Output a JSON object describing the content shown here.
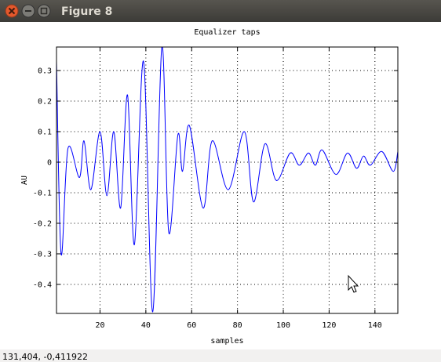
{
  "window": {
    "title": "Figure 8",
    "status": "131,404, -0,411922"
  },
  "chart_data": {
    "type": "line",
    "title": "Equalizer taps",
    "x_label": "samples",
    "y_label": "AU",
    "x": [
      1,
      3,
      6,
      11,
      13,
      16,
      20,
      23,
      26,
      29,
      32,
      35,
      39,
      43,
      47,
      50,
      54,
      56,
      59,
      65,
      69,
      76,
      83,
      87,
      92,
      97,
      103,
      107,
      111,
      114,
      117,
      123,
      128,
      132,
      135,
      138,
      143,
      148,
      150
    ],
    "series": [
      {
        "color": "#0000ff",
        "values": [
          0.33,
          -0.3,
          0.045,
          -0.05,
          0.07,
          -0.09,
          0.1,
          -0.11,
          0.1,
          -0.15,
          0.22,
          -0.27,
          0.33,
          -0.49,
          0.38,
          -0.23,
          0.09,
          -0.03,
          0.12,
          -0.15,
          0.07,
          -0.09,
          0.1,
          -0.13,
          0.06,
          -0.06,
          0.03,
          -0.01,
          0.03,
          -0.01,
          0.04,
          -0.04,
          0.03,
          -0.02,
          0.02,
          -0.01,
          0.035,
          -0.03,
          0.035
        ]
      }
    ],
    "xlim": [
      1,
      150
    ],
    "ylim": [
      -0.495,
      0.377
    ],
    "xticks": [
      20,
      40,
      60,
      80,
      100,
      120,
      140
    ],
    "yticks": [
      -0.4,
      -0.3,
      -0.2,
      -0.1,
      0,
      0.1,
      0.2,
      0.3
    ],
    "grid": true
  }
}
